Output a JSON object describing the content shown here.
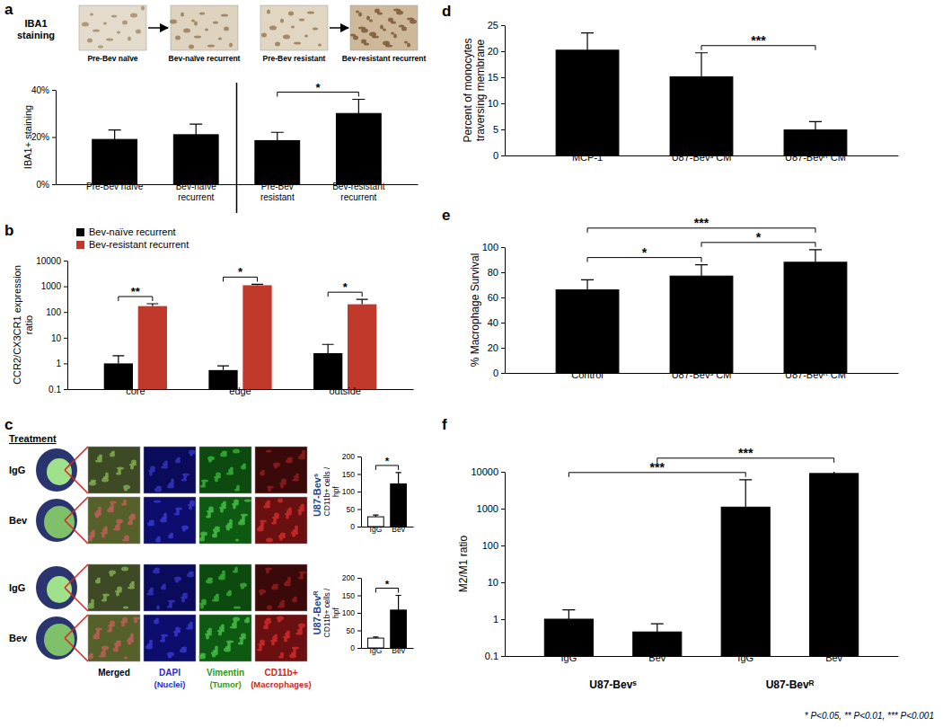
{
  "chart_data": [
    {
      "type": "bar",
      "title": "a",
      "categories": [
        "Pre-Bev naïve",
        "Bev-naïve recurrent",
        "Pre-Bev resistant",
        "Bev-resistant recurrent"
      ],
      "values": [
        19,
        21,
        18.5,
        30
      ],
      "errors": [
        4,
        4.5,
        3.5,
        6
      ],
      "color": "#000000",
      "y_label": "IBA1+ staining",
      "ylim": [
        0,
        40
      ],
      "yticks": [
        {
          "value": 0,
          "label": "0%"
        },
        {
          "value": 20,
          "label": "20%"
        },
        {
          "value": 40,
          "label": "40%"
        }
      ],
      "brackets": [
        {
          "between": [
            2,
            3
          ],
          "text": "*"
        }
      ]
    },
    {
      "type": "grouped_bar",
      "title": "b",
      "categories": [
        "core",
        "edge",
        "outside"
      ],
      "series": [
        {
          "name": "Bev-naïve recurrent",
          "color": "#000000",
          "values": [
            1,
            0.55,
            2.5
          ],
          "errors": [
            1,
            0.25,
            3
          ]
        },
        {
          "name": "Bev-resistant recurrent",
          "color": "#c0392b",
          "values": [
            170,
            1100,
            200
          ],
          "errors": [
            40,
            100,
            110
          ]
        }
      ],
      "y_label": "CCR2/CX3CR1 expression ratio",
      "log": "y",
      "ylim": [
        0.1,
        10000
      ],
      "yticks": [
        0.1,
        1,
        10,
        100,
        1000,
        10000
      ],
      "legend": "top-left",
      "brackets": [
        {
          "category": 0,
          "text": "**"
        },
        {
          "category": 1,
          "text": "*"
        },
        {
          "category": 2,
          "text": "*"
        }
      ]
    },
    {
      "type": "bar",
      "title": "U87-Bevˢ",
      "categories": [
        "IgG",
        "Bev"
      ],
      "values": [
        28,
        122
      ],
      "errors": [
        5,
        32
      ],
      "colors": [
        "#ffffff",
        "#000000"
      ],
      "y_label": "CD11b+ cells / hpf",
      "ylim": [
        0,
        200
      ],
      "yticks": [
        0,
        50,
        100,
        150,
        200
      ],
      "brackets": [
        {
          "between": [
            0,
            1
          ],
          "text": "*"
        }
      ]
    },
    {
      "type": "bar",
      "title": "U87-Bevᴿ",
      "categories": [
        "IgG",
        "Bev"
      ],
      "values": [
        28,
        108
      ],
      "errors": [
        3,
        42
      ],
      "colors": [
        "#ffffff",
        "#000000"
      ],
      "y_label": "CD11b+ cells / hpf",
      "ylim": [
        0,
        200
      ],
      "yticks": [
        0,
        50,
        100,
        150,
        200
      ],
      "brackets": [
        {
          "between": [
            0,
            1
          ],
          "text": "*"
        }
      ]
    },
    {
      "type": "bar",
      "title": "d",
      "categories": [
        "MCP-1",
        "U87-Bevˢ CM",
        "U87-Bevᴿ CM"
      ],
      "values": [
        20.2,
        15.1,
        4.9
      ],
      "errors": [
        3.3,
        4.6,
        1.6
      ],
      "color": "#000000",
      "y_label": "Percent of monocytes traversing membrane",
      "ylim": [
        0,
        25
      ],
      "yticks": [
        0,
        5,
        10,
        15,
        20,
        25
      ],
      "brackets": [
        {
          "between": [
            1,
            2
          ],
          "text": "***"
        }
      ]
    },
    {
      "type": "bar",
      "title": "e",
      "categories": [
        "Control",
        "U87-Bevˢ CM",
        "U87-Bevᴿ CM"
      ],
      "values": [
        66,
        77,
        88
      ],
      "errors": [
        8,
        9,
        10
      ],
      "color": "#000000",
      "y_label": "% Macrophage Survival",
      "ylim": [
        0,
        100
      ],
      "yticks": [
        0,
        20,
        40,
        60,
        80,
        100
      ],
      "brackets": [
        {
          "between": [
            0,
            1
          ],
          "text": "*"
        },
        {
          "between": [
            1,
            2
          ],
          "text": "*"
        },
        {
          "between": [
            0,
            2
          ],
          "text": "***"
        }
      ]
    },
    {
      "type": "bar",
      "title": "f",
      "categories": [
        "IgG",
        "Bev",
        "IgG",
        "Bev"
      ],
      "values": [
        1,
        0.45,
        1100,
        9000
      ],
      "errors": [
        0.8,
        0.3,
        5000,
        5000
      ],
      "color": "#000000",
      "y_label": "M2/M1 ratio",
      "log": "y",
      "ylim": [
        0.1,
        10000
      ],
      "yticks": [
        0.1,
        1,
        10,
        100,
        1000,
        10000
      ],
      "groups": [
        {
          "label": "U87-Bevˢ",
          "members": [
            0,
            1
          ]
        },
        {
          "label": "U87-Bevᴿ",
          "members": [
            2,
            3
          ]
        }
      ],
      "brackets": [
        {
          "between": [
            0,
            2
          ],
          "text": "***"
        },
        {
          "between": [
            1,
            3
          ],
          "text": "***"
        }
      ],
      "annotations": [
        "* P<0.05, ** P<0.01, *** P<0.001"
      ]
    }
  ],
  "micrographs": {
    "a": {
      "title": "IBA1 staining",
      "labels": [
        "Pre-Bev naïve",
        "Bev-naïve recurrent",
        "Pre-Bev resistant",
        "Bev-resistant recurrent"
      ]
    },
    "c": {
      "label": "c",
      "heading": "Treatment",
      "rows": [
        "IgG",
        "Bev",
        "IgG",
        "Bev"
      ],
      "columns": [
        {
          "name": "Merged",
          "color": "#000000"
        },
        {
          "name": "DAPI",
          "note": "(Nuclei)",
          "color": "#1f2fd0"
        },
        {
          "name": "Vimentin",
          "note": "(Tumor)",
          "color": "#1f9a2a"
        },
        {
          "name": "CD11b+",
          "note": "(Macrophages)",
          "color": "#d01f1f"
        }
      ]
    }
  }
}
